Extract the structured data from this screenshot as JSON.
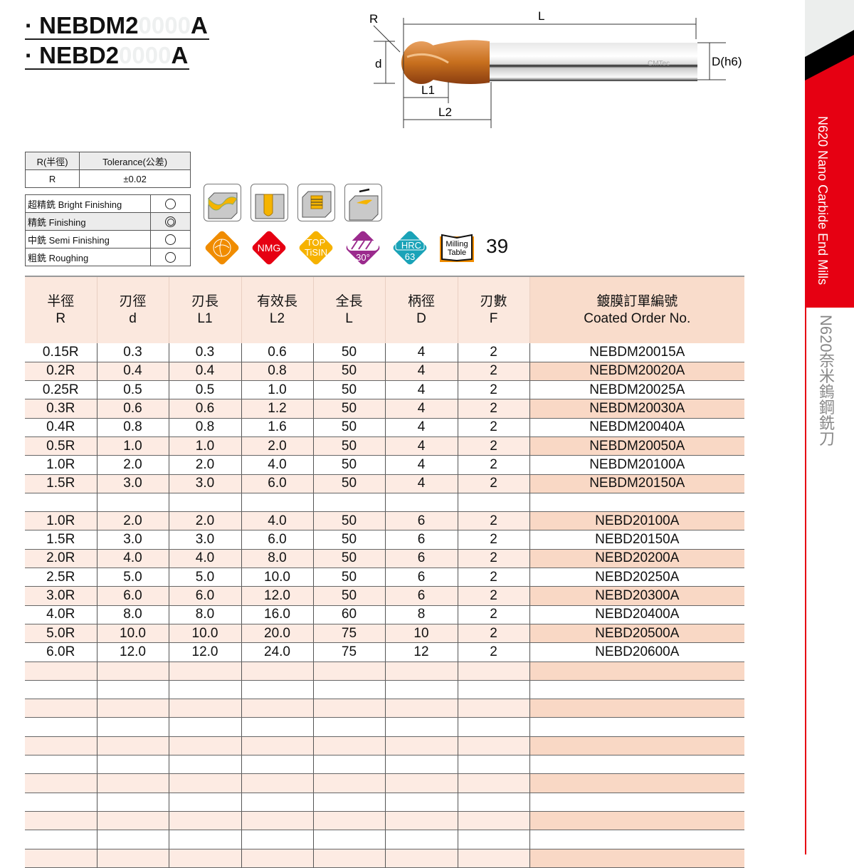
{
  "titles": [
    {
      "prefix": "· NEBDM2",
      "ghost": "0000",
      "suffix": "A"
    },
    {
      "prefix": "· NEBD2",
      "ghost": "0000",
      "suffix": "A"
    }
  ],
  "diagram": {
    "labels": {
      "R": "R",
      "L": "L",
      "d": "d",
      "L1": "L1",
      "L2": "L2",
      "D": "D(h6)"
    },
    "logo": "CMTec"
  },
  "tolerance": {
    "headers": [
      "R(半徑)",
      "Tolerance(公差)"
    ],
    "values": [
      "R",
      "±0.02"
    ]
  },
  "finishing": [
    {
      "label": "超精銑 Bright Finishing",
      "mark": "single"
    },
    {
      "label": "精銑 Finishing",
      "mark": "double"
    },
    {
      "label": "中銑 Semi Finishing",
      "mark": "single"
    },
    {
      "label": "粗銑 Roughing",
      "mark": "single"
    }
  ],
  "application_icons": [
    "contour-milling-icon",
    "slot-milling-icon",
    "helical-milling-icon",
    "side-milling-icon"
  ],
  "badges": {
    "nmg": "NMG",
    "coating": [
      "TOP",
      "TiSIN"
    ],
    "helix": "30°",
    "hrc": [
      "HRC",
      "63"
    ],
    "milling_table": [
      "Milling",
      "Table"
    ],
    "page": "39"
  },
  "colors": {
    "orange": "#f08c00",
    "red": "#e60012",
    "yellow": "#f6b200",
    "purple": "#9b2a8d",
    "teal": "#1aa3b8",
    "peach": "#fbe8de"
  },
  "table": {
    "headers": [
      [
        "半徑",
        "R"
      ],
      [
        "刃徑",
        "d"
      ],
      [
        "刃長",
        "L1"
      ],
      [
        "有效長",
        "L2"
      ],
      [
        "全長",
        "L"
      ],
      [
        "柄徑",
        "D"
      ],
      [
        "刃數",
        "F"
      ],
      [
        "鍍膜訂單編號",
        "Coated Order No."
      ]
    ],
    "rows": [
      [
        "0.15R",
        "0.3",
        "0.3",
        "0.6",
        "50",
        "4",
        "2",
        "NEBDM20015A"
      ],
      [
        "0.2R",
        "0.4",
        "0.4",
        "0.8",
        "50",
        "4",
        "2",
        "NEBDM20020A"
      ],
      [
        "0.25R",
        "0.5",
        "0.5",
        "1.0",
        "50",
        "4",
        "2",
        "NEBDM20025A"
      ],
      [
        "0.3R",
        "0.6",
        "0.6",
        "1.2",
        "50",
        "4",
        "2",
        "NEBDM20030A"
      ],
      [
        "0.4R",
        "0.8",
        "0.8",
        "1.6",
        "50",
        "4",
        "2",
        "NEBDM20040A"
      ],
      [
        "0.5R",
        "1.0",
        "1.0",
        "2.0",
        "50",
        "4",
        "2",
        "NEBDM20050A"
      ],
      [
        "1.0R",
        "2.0",
        "2.0",
        "4.0",
        "50",
        "4",
        "2",
        "NEBDM20100A"
      ],
      [
        "1.5R",
        "3.0",
        "3.0",
        "6.0",
        "50",
        "4",
        "2",
        "NEBDM20150A"
      ],
      [
        "",
        "",
        "",
        "",
        "",
        "",
        "",
        ""
      ],
      [
        "1.0R",
        "2.0",
        "2.0",
        "4.0",
        "50",
        "6",
        "2",
        "NEBD20100A"
      ],
      [
        "1.5R",
        "3.0",
        "3.0",
        "6.0",
        "50",
        "6",
        "2",
        "NEBD20150A"
      ],
      [
        "2.0R",
        "4.0",
        "4.0",
        "8.0",
        "50",
        "6",
        "2",
        "NEBD20200A"
      ],
      [
        "2.5R",
        "5.0",
        "5.0",
        "10.0",
        "50",
        "6",
        "2",
        "NEBD20250A"
      ],
      [
        "3.0R",
        "6.0",
        "6.0",
        "12.0",
        "50",
        "6",
        "2",
        "NEBD20300A"
      ],
      [
        "4.0R",
        "8.0",
        "8.0",
        "16.0",
        "60",
        "8",
        "2",
        "NEBD20400A"
      ],
      [
        "5.0R",
        "10.0",
        "10.0",
        "20.0",
        "75",
        "10",
        "2",
        "NEBD20500A"
      ],
      [
        "6.0R",
        "12.0",
        "12.0",
        "24.0",
        "75",
        "12",
        "2",
        "NEBD20600A"
      ]
    ],
    "empty_rows": 11
  },
  "side": {
    "en": "N620 Nano Carbide End Mills",
    "zh": "N620奈米鎢鋼銑刀"
  }
}
